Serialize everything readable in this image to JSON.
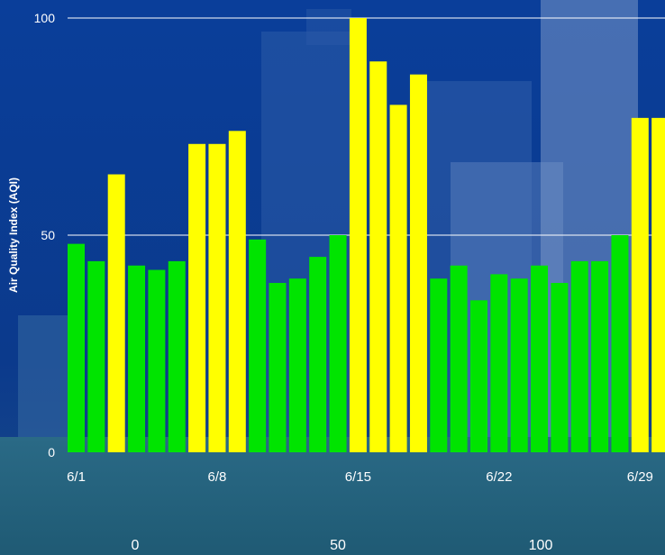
{
  "chart_data": {
    "type": "bar",
    "title": "",
    "xlabel": "",
    "ylabel": "Air Quality Index (AQI)",
    "ylim": [
      0,
      100
    ],
    "yticks": [
      0,
      50,
      100
    ],
    "grid": true,
    "date_ticks": [
      "6/1",
      "6/8",
      "6/15",
      "6/22",
      "6/29"
    ],
    "secondary_axis_ticks": [
      "0",
      "50",
      "100"
    ],
    "colors": {
      "good": "#00e400",
      "moderate": "#ffff00",
      "grid": "#ffffff",
      "text": "#ffffff"
    },
    "categories": [
      "6/1",
      "6/2",
      "6/3",
      "6/4",
      "6/5",
      "6/6",
      "6/7",
      "6/8",
      "6/9",
      "6/10",
      "6/11",
      "6/12",
      "6/13",
      "6/14",
      "6/15",
      "6/16",
      "6/17",
      "6/18",
      "6/19",
      "6/20",
      "6/21",
      "6/22",
      "6/23",
      "6/24",
      "6/25",
      "6/26",
      "6/27",
      "6/28",
      "6/29",
      "6/30"
    ],
    "values": [
      48,
      44,
      64,
      43,
      42,
      44,
      71,
      71,
      74,
      49,
      39,
      40,
      45,
      50,
      100,
      90,
      80,
      87,
      40,
      43,
      35,
      41,
      40,
      43,
      39,
      44,
      44,
      50,
      77,
      77
    ]
  }
}
